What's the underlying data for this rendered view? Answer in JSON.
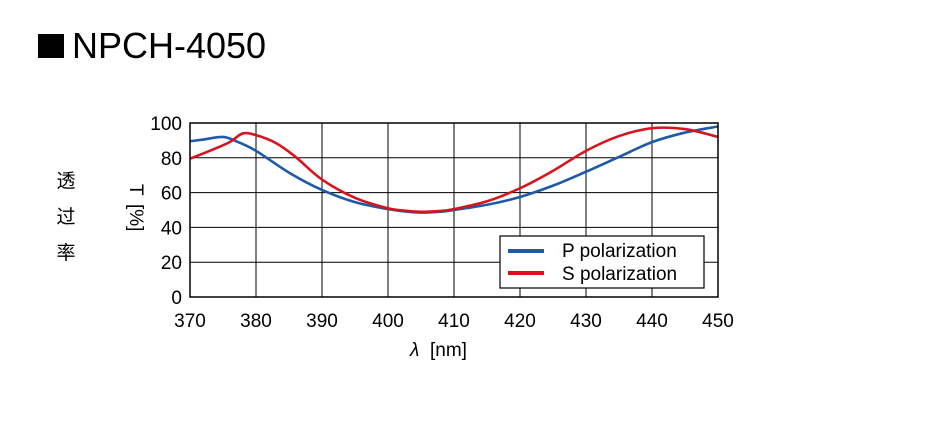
{
  "page": {
    "title_marker": "■",
    "title": "NPCH-4050"
  },
  "chart_data": {
    "type": "line",
    "title": "NPCH-4050",
    "xlabel_symbol": "λ",
    "xlabel": "[nm]",
    "ylabel_symbol": "T",
    "ylabel": "[%]",
    "ylabel_cjk": [
      "透",
      "过",
      "率"
    ],
    "xlim": [
      370,
      450
    ],
    "ylim": [
      0,
      100
    ],
    "xticks": [
      370,
      380,
      390,
      400,
      410,
      420,
      430,
      440,
      450
    ],
    "yticks": [
      0,
      20,
      40,
      60,
      80,
      100
    ],
    "grid": true,
    "legend_position": "bottom-right",
    "series": [
      {
        "name": "P polarization",
        "color": "#1f5aa8",
        "x": [
          370,
          372,
          375,
          377,
          380,
          385,
          390,
          395,
          400,
          403,
          405,
          408,
          410,
          415,
          420,
          425,
          430,
          435,
          440,
          445,
          450
        ],
        "y": [
          89.5,
          90.5,
          92,
          89.5,
          84,
          71.5,
          61.5,
          54.5,
          50.5,
          49,
          48.5,
          49,
          50,
          53,
          57.5,
          64,
          72,
          80.5,
          89,
          94.5,
          98
        ]
      },
      {
        "name": "S polarization",
        "color": "#d7141e",
        "x": [
          370,
          373,
          376,
          378,
          380,
          383,
          386,
          390,
          395,
          400,
          403,
          405,
          408,
          410,
          415,
          420,
          425,
          430,
          435,
          440,
          445,
          450
        ],
        "y": [
          79.5,
          84,
          89,
          94,
          93,
          88.5,
          80.5,
          67.5,
          57,
          51,
          49.5,
          49,
          49.5,
          50.5,
          55,
          62.5,
          72.5,
          84,
          92.5,
          97,
          96.5,
          92
        ]
      }
    ]
  }
}
